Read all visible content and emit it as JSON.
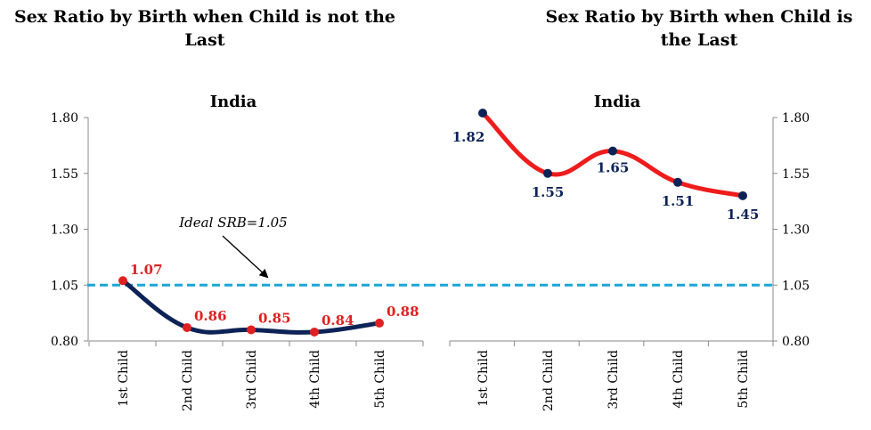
{
  "chart_data": [
    {
      "type": "line",
      "title": "Sex Ratio by Birth when Child is not the Last",
      "subtitle": "India",
      "categories": [
        "1st Child",
        "2nd Child",
        "3rd Child",
        "4th Child",
        "5th Child"
      ],
      "series": [
        {
          "values": [
            1.07,
            0.86,
            0.85,
            0.84,
            0.88
          ],
          "line_color": "#0d2357",
          "marker_color": "#e02020",
          "label_color": "#e02020"
        }
      ],
      "reference_line": {
        "value": 1.05,
        "label": "Ideal SRB=1.05",
        "color": "#1aa6d9"
      },
      "y_ticks": [
        "1.80",
        "1.55",
        "1.30",
        "1.05",
        "0.80"
      ],
      "ylim": [
        0.8,
        1.8
      ],
      "y_axis_side": "left",
      "grid": false
    },
    {
      "type": "line",
      "title": "Sex Ratio by Birth when Child is the Last",
      "subtitle": "India",
      "categories": [
        "1st Child",
        "2nd Child",
        "3rd Child",
        "4th Child",
        "5th Child"
      ],
      "series": [
        {
          "values": [
            1.82,
            1.55,
            1.65,
            1.51,
            1.45
          ],
          "line_color": "#ee1c1c",
          "marker_color": "#0d2357",
          "label_color": "#0d2357"
        }
      ],
      "reference_line": {
        "value": 1.05,
        "color": "#1aa6d9"
      },
      "y_ticks": [
        "1.80",
        "1.55",
        "1.30",
        "1.05",
        "0.80"
      ],
      "ylim": [
        0.8,
        1.8
      ],
      "y_axis_side": "right",
      "grid": false
    }
  ]
}
